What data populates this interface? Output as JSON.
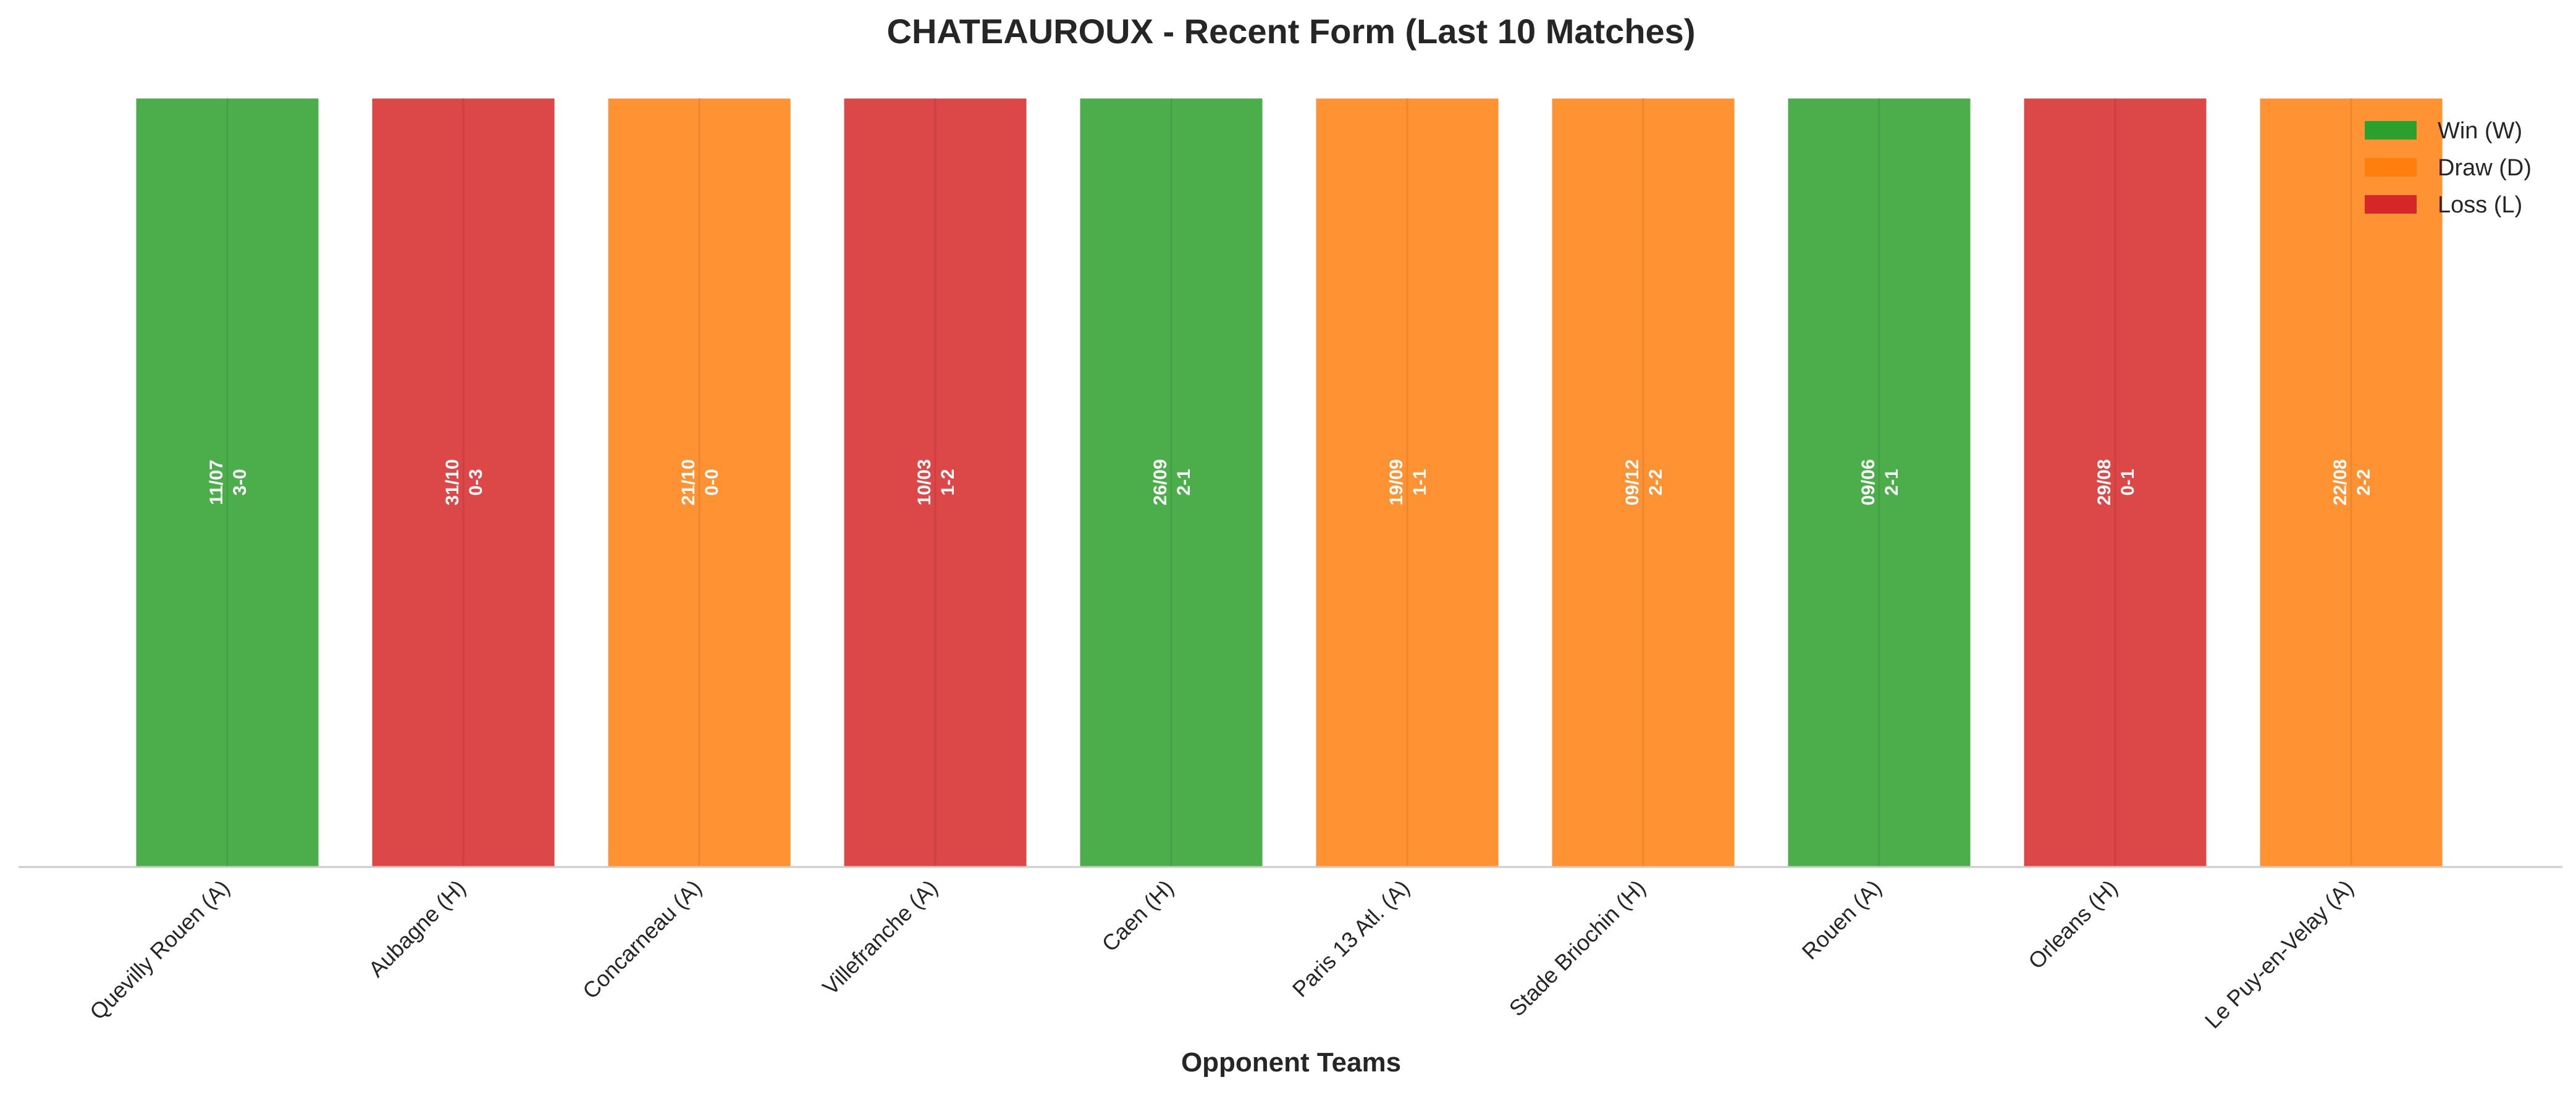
{
  "chart_data": {
    "type": "bar",
    "title": "CHATEAUROUX - Recent Form (Last 10 Matches)",
    "xlabel": "Opponent Teams",
    "ylabel": "",
    "ylim": [
      0,
      1
    ],
    "grid": true,
    "legend_position": "top-right",
    "legend": [
      {
        "label": "Win (W)",
        "color": "#2ca02c"
      },
      {
        "label": "Draw (D)",
        "color": "#ff7f0e"
      },
      {
        "label": "Loss (L)",
        "color": "#d62728"
      }
    ],
    "colors": {
      "W": "#2ca02c",
      "D": "#ff7f0e",
      "L": "#d62728"
    },
    "categories": [
      "Quevilly Rouen (A)",
      "Aubagne (H)",
      "Concarneau (A)",
      "Villefranche (A)",
      "Caen (H)",
      "Paris 13 Atl. (A)",
      "Stade Briochin (H)",
      "Rouen (A)",
      "Orleans (H)",
      "Le Puy-en-Velay (A)"
    ],
    "values": [
      1,
      1,
      1,
      1,
      1,
      1,
      1,
      1,
      1,
      1
    ],
    "results": [
      "W",
      "L",
      "D",
      "L",
      "W",
      "D",
      "D",
      "W",
      "L",
      "D"
    ],
    "dates": [
      "11/07",
      "31/10",
      "21/10",
      "10/03",
      "26/09",
      "19/09",
      "09/12",
      "09/06",
      "29/08",
      "22/08"
    ],
    "scores": [
      "3-0",
      "0-3",
      "0-0",
      "1-2",
      "2-1",
      "1-1",
      "2-2",
      "2-1",
      "0-1",
      "2-2"
    ]
  }
}
